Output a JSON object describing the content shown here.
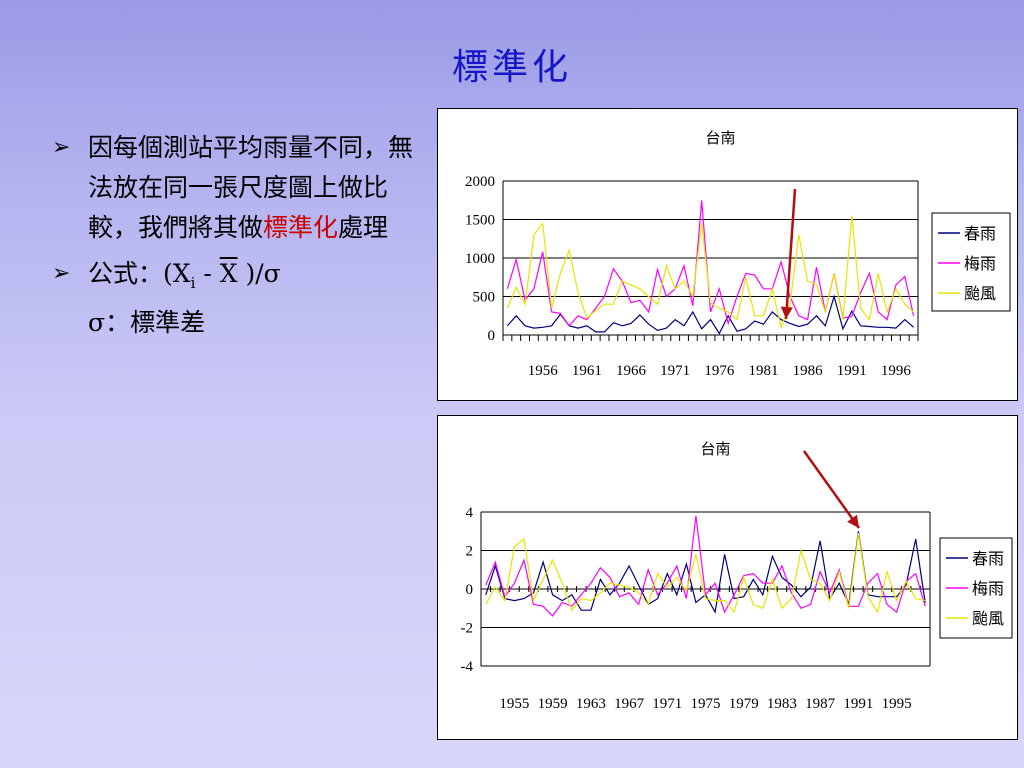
{
  "slide": {
    "title": "標準化",
    "bullet1_pre": "因每個測站平均雨量不同，無法放在同一張尺度圖上做比較，我們將其做",
    "bullet1_highlight": "標準化",
    "bullet1_post": "處理",
    "formula_label": "公式：(X",
    "formula_sub": "i",
    "formula_minus": " - ",
    "formula_xbar": "X",
    "formula_end": " )/σ",
    "sigma_line": "σ：標準差",
    "colors": {
      "title": "#1515c8",
      "highlight": "#cc0000",
      "annotation_arrow": "#b01010"
    },
    "icons": {
      "bullet": "arrowhead-bullet-icon"
    }
  },
  "chart_data": [
    {
      "type": "line",
      "title": "台南",
      "ylim": [
        0,
        2000
      ],
      "yticks": [
        0,
        500,
        1000,
        1500,
        2000
      ],
      "grid": true,
      "legend_position": "right",
      "x": [
        1952,
        1953,
        1954,
        1955,
        1956,
        1957,
        1958,
        1959,
        1960,
        1961,
        1962,
        1963,
        1964,
        1965,
        1966,
        1967,
        1968,
        1969,
        1970,
        1971,
        1972,
        1973,
        1974,
        1975,
        1976,
        1977,
        1978,
        1979,
        1980,
        1981,
        1982,
        1983,
        1984,
        1985,
        1986,
        1987,
        1988,
        1989,
        1990,
        1991,
        1992,
        1993,
        1994,
        1995,
        1996,
        1997,
        1998
      ],
      "xtick_labels": [
        "1956",
        "1961",
        "1966",
        "1971",
        "1976",
        "1981",
        "1986",
        "1991",
        "1996"
      ],
      "series": [
        {
          "name": "春雨",
          "color": "#00007f",
          "values": [
            120,
            250,
            120,
            90,
            100,
            120,
            270,
            120,
            90,
            120,
            40,
            40,
            160,
            120,
            150,
            260,
            140,
            60,
            90,
            200,
            120,
            300,
            80,
            200,
            20,
            250,
            50,
            80,
            180,
            140,
            300,
            200,
            150,
            110,
            140,
            250,
            120,
            500,
            80,
            310,
            120,
            110,
            100,
            100,
            90,
            200,
            100
          ]
        },
        {
          "name": "梅雨",
          "color": "#ff00ff",
          "values": [
            600,
            980,
            450,
            600,
            1080,
            300,
            280,
            120,
            250,
            200,
            350,
            500,
            860,
            700,
            420,
            450,
            300,
            850,
            500,
            600,
            900,
            380,
            1750,
            300,
            600,
            150,
            500,
            800,
            780,
            600,
            600,
            950,
            500,
            250,
            200,
            880,
            300,
            800,
            220,
            240,
            550,
            800,
            300,
            200,
            650,
            760,
            250
          ]
        },
        {
          "name": "颱風",
          "color": "#e6e600",
          "values": [
            350,
            620,
            400,
            1300,
            1450,
            350,
            800,
            1100,
            550,
            220,
            320,
            400,
            400,
            700,
            650,
            600,
            500,
            400,
            900,
            600,
            700,
            500,
            1450,
            420,
            350,
            300,
            200,
            750,
            250,
            250,
            600,
            100,
            400,
            1300,
            700,
            650,
            300,
            800,
            200,
            1550,
            350,
            200,
            800,
            300,
            600,
            400,
            300
          ]
        }
      ]
    },
    {
      "type": "line",
      "title": "台南",
      "ylim": [
        -4,
        4
      ],
      "yticks": [
        -4,
        -2,
        0,
        2,
        4
      ],
      "grid": true,
      "legend_position": "right",
      "x": [
        1952,
        1953,
        1954,
        1955,
        1956,
        1957,
        1958,
        1959,
        1960,
        1961,
        1962,
        1963,
        1964,
        1965,
        1966,
        1967,
        1968,
        1969,
        1970,
        1971,
        1972,
        1973,
        1974,
        1975,
        1976,
        1977,
        1978,
        1979,
        1980,
        1981,
        1982,
        1983,
        1984,
        1985,
        1986,
        1987,
        1988,
        1989,
        1990,
        1991,
        1992,
        1993,
        1994,
        1995,
        1996,
        1997,
        1998
      ],
      "xtick_labels": [
        "1955",
        "1959",
        "1963",
        "1967",
        "1971",
        "1975",
        "1979",
        "1983",
        "1987",
        "1991",
        "1995"
      ],
      "series": [
        {
          "name": "春雨",
          "color": "#00007f",
          "values": [
            -0.3,
            1.2,
            -0.5,
            -0.6,
            -0.5,
            -0.2,
            1.4,
            -0.3,
            -0.6,
            -0.3,
            -1.1,
            -1.1,
            0.5,
            -0.3,
            0.3,
            1.2,
            0.2,
            -0.8,
            -0.5,
            0.8,
            -0.3,
            1.3,
            -0.7,
            -0.3,
            -1.2,
            1.8,
            -0.5,
            -0.4,
            0.5,
            -0.3,
            1.7,
            0.6,
            0.2,
            -0.4,
            0.1,
            2.5,
            -0.5,
            0.3,
            -0.8,
            3.0,
            -0.3,
            -0.4,
            -0.4,
            -0.4,
            0.2,
            2.6,
            -0.7
          ]
        },
        {
          "name": "梅雨",
          "color": "#ff00ff",
          "values": [
            0.2,
            1.4,
            -0.4,
            0.3,
            1.5,
            -0.8,
            -0.9,
            -1.4,
            -0.7,
            -0.9,
            -0.3,
            0.3,
            1.1,
            0.6,
            -0.4,
            -0.2,
            -0.8,
            1.0,
            -0.3,
            0.3,
            1.2,
            -0.5,
            3.8,
            -0.3,
            0.3,
            -1.2,
            -0.3,
            0.7,
            0.8,
            0.3,
            0.3,
            1.2,
            -0.2,
            -1.0,
            -0.8,
            0.9,
            -0.2,
            1.0,
            -0.9,
            -0.9,
            0.3,
            0.8,
            -0.8,
            -1.2,
            0.4,
            0.8,
            -0.9
          ]
        },
        {
          "name": "颱風",
          "color": "#e6e600",
          "values": [
            -0.8,
            0.1,
            -0.6,
            2.2,
            2.6,
            -0.6,
            0.5,
            1.5,
            0.3,
            -1.1,
            -0.5,
            -0.6,
            -0.2,
            0.3,
            0.2,
            0.1,
            -0.2,
            -0.8,
            0.8,
            0.1,
            0.6,
            -0.1,
            1.8,
            -0.5,
            -0.6,
            -0.6,
            -1.2,
            0.6,
            -0.8,
            -1.0,
            0.5,
            -1.0,
            -0.5,
            2.0,
            0.5,
            0.3,
            -0.6,
            0.9,
            -1.0,
            2.9,
            -0.4,
            -1.2,
            0.9,
            -0.6,
            0.4,
            -0.5,
            -0.6
          ]
        }
      ]
    }
  ]
}
